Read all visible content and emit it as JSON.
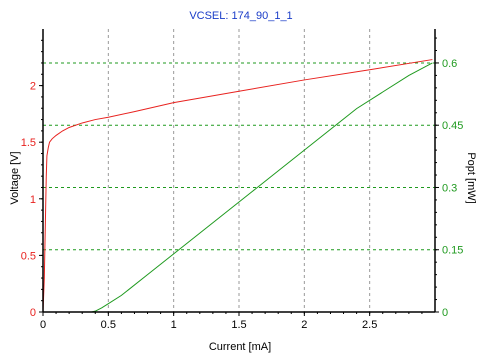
{
  "chart_data": {
    "type": "line",
    "title": "VCSEL: 174_90_1_1",
    "xlabel": "Current [mA]",
    "ylabel_left": "Voltage [V]",
    "ylabel_right": "Popt [mW]",
    "xlim": [
      0,
      3.0
    ],
    "ylim_left": [
      0,
      2.5
    ],
    "ylim_right": [
      0,
      0.6818
    ],
    "x_ticks": [
      0,
      0.5,
      1,
      1.5,
      2,
      2.5
    ],
    "x_tick_labels": [
      "0",
      "0.5",
      "1",
      "1.5",
      "2",
      "2.5"
    ],
    "y_left_ticks": [
      0,
      0.5,
      1,
      1.5,
      2
    ],
    "y_left_tick_labels": [
      "0",
      "0.5",
      "1",
      "1.5",
      "2"
    ],
    "y_right_ticks": [
      0,
      0.15,
      0.3,
      0.45,
      0.6
    ],
    "y_right_tick_labels": [
      "0",
      "0.15",
      "0.3",
      "0.45",
      "0.6"
    ],
    "grid": true,
    "colors": {
      "title": "#1a3cc8",
      "voltage": "#e8221f",
      "popt": "#1f9a1f",
      "grid_x": "#9a9a9a",
      "grid_y": "#1f9a1f",
      "axis": "#000000"
    },
    "series": [
      {
        "axis": "left",
        "color": "#e8221f",
        "x": [
          0.0,
          0.01,
          0.02,
          0.025,
          0.03,
          0.04,
          0.05,
          0.07,
          0.1,
          0.15,
          0.2,
          0.3,
          0.4,
          0.5,
          0.7,
          1.0,
          1.5,
          2.0,
          2.5,
          2.98
        ],
        "y": [
          0.0,
          0.3,
          0.9,
          1.2,
          1.38,
          1.45,
          1.5,
          1.53,
          1.56,
          1.6,
          1.63,
          1.67,
          1.7,
          1.72,
          1.77,
          1.85,
          1.95,
          2.05,
          2.14,
          2.23
        ]
      },
      {
        "axis": "right",
        "color": "#1f9a1f",
        "x": [
          0.0,
          0.3,
          0.37,
          0.4,
          0.45,
          0.5,
          0.6,
          0.8,
          1.0,
          1.2,
          1.4,
          1.6,
          1.8,
          2.0,
          2.2,
          2.4,
          2.6,
          2.8,
          2.98
        ],
        "y": [
          0.0,
          0.0,
          0.0,
          0.002,
          0.01,
          0.02,
          0.04,
          0.09,
          0.14,
          0.19,
          0.24,
          0.29,
          0.34,
          0.39,
          0.44,
          0.49,
          0.53,
          0.57,
          0.6
        ]
      }
    ]
  }
}
